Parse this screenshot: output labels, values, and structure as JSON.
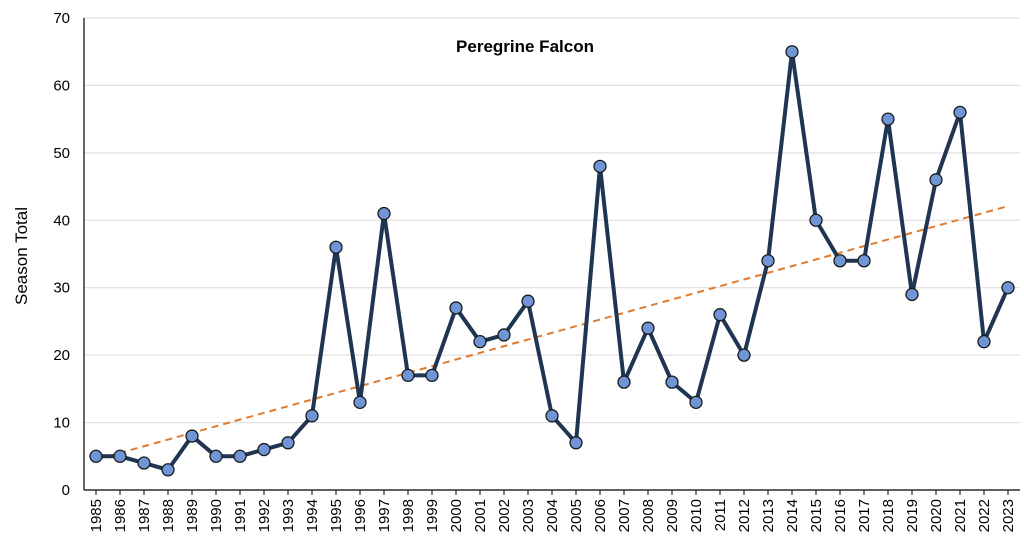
{
  "chart_data": {
    "type": "line",
    "title": "Peregrine Falcon",
    "xlabel": "",
    "ylabel": "Season Total",
    "ylim": [
      0,
      70
    ],
    "yticks": [
      0,
      10,
      20,
      30,
      40,
      50,
      60,
      70
    ],
    "grid": true,
    "legend": "none",
    "categories": [
      "1985",
      "1986",
      "1987",
      "1988",
      "1989",
      "1990",
      "1991",
      "1992",
      "1993",
      "1994",
      "1995",
      "1996",
      "1997",
      "1998",
      "1999",
      "2000",
      "2001",
      "2002",
      "2003",
      "2004",
      "2005",
      "2006",
      "2007",
      "2008",
      "2009",
      "2010",
      "2011",
      "2012",
      "2013",
      "2014",
      "2015",
      "2016",
      "2017",
      "2018",
      "2019",
      "2020",
      "2021",
      "2022",
      "2023"
    ],
    "series": [
      {
        "values": [
          5,
          5,
          4,
          3,
          8,
          5,
          5,
          6,
          7,
          11,
          36,
          13,
          41,
          17,
          17,
          27,
          22,
          23,
          28,
          11,
          7,
          48,
          16,
          24,
          16,
          13,
          26,
          20,
          34,
          65,
          40,
          34,
          34,
          55,
          29,
          46,
          56,
          22,
          30
        ],
        "color": "#1f3552",
        "marker_color": "#6f95d6"
      }
    ],
    "trendline": {
      "type": "linear",
      "style": "dashed",
      "color": "#e07b2e"
    }
  }
}
